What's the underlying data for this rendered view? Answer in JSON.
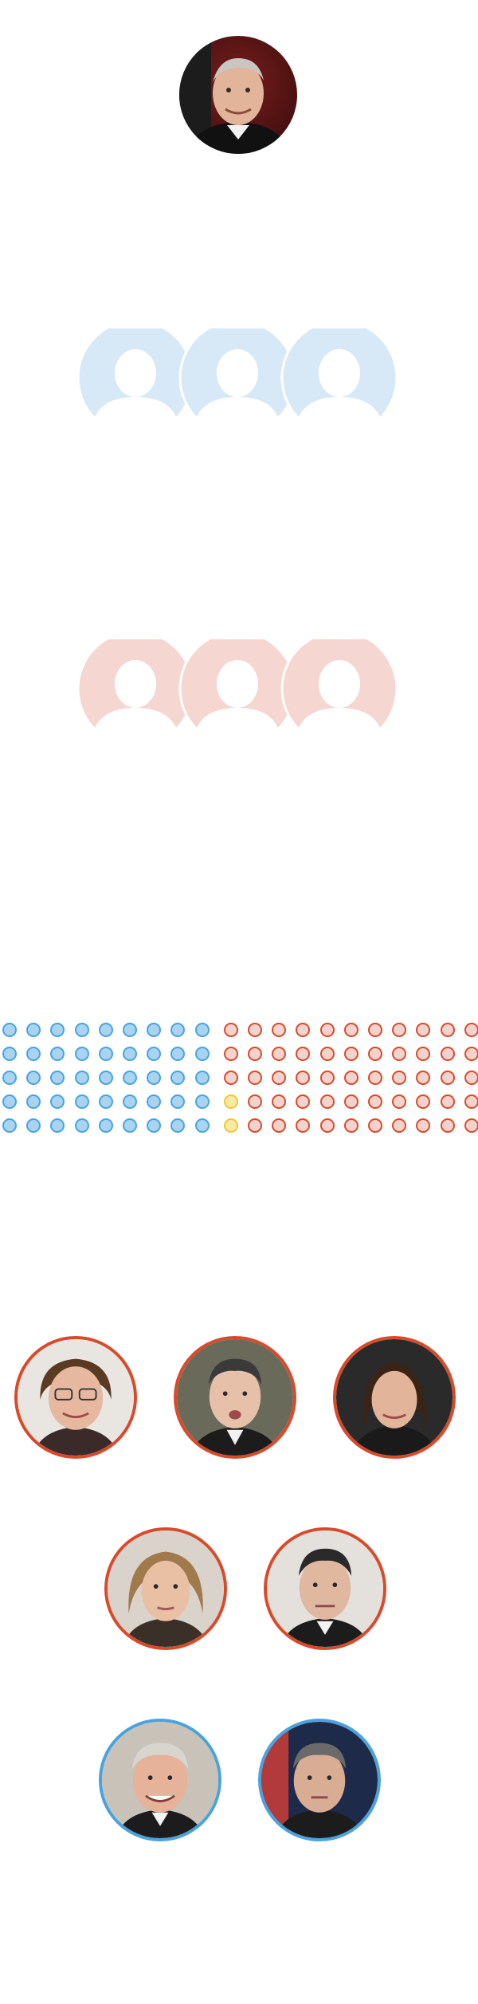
{
  "colors": {
    "democrat_fill": "#a8d4f2",
    "democrat_stroke": "#4aa3de",
    "republican_fill": "#f5d3cc",
    "republican_stroke": "#d94a2b",
    "independent_fill": "#fbe9a4",
    "independent_stroke": "#f0c73a",
    "placeholder_blue": "#d7e9f7",
    "placeholder_red": "#f6d6d0"
  },
  "presiding_officer": {
    "icon": "chief-justice-portrait",
    "ring": "none"
  },
  "placeholders": [
    {
      "group": "democrat-placeholders",
      "count": 3,
      "color": "placeholder_blue"
    },
    {
      "group": "republican-placeholders",
      "count": 3,
      "color": "placeholder_red"
    }
  ],
  "senate_seats": {
    "rows": 5,
    "democrat_columns": 9,
    "independent_seats": 2,
    "republican_seats": 53,
    "democrat_seats": 45
  },
  "republican_portraits": [
    {
      "icon": "senator-portrait-1"
    },
    {
      "icon": "senator-portrait-2"
    },
    {
      "icon": "senator-portrait-3"
    },
    {
      "icon": "senator-portrait-4"
    },
    {
      "icon": "senator-portrait-5"
    }
  ],
  "democrat_portraits": [
    {
      "icon": "senator-portrait-6"
    },
    {
      "icon": "senator-portrait-7"
    }
  ]
}
